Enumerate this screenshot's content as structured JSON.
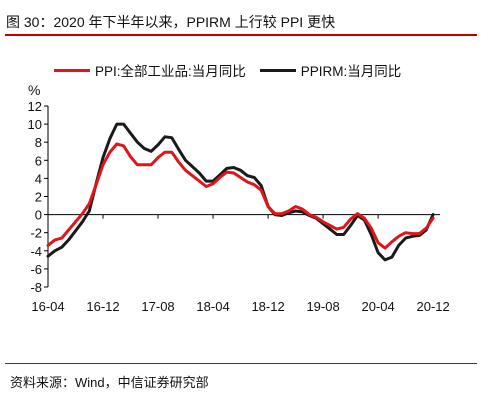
{
  "figure": {
    "title": "图 30：2020 年下半年以来，PPIRM 上行较 PPI 更快",
    "source": "资料来源：Wind，中信证券研究部"
  },
  "colors": {
    "accent_rule": "#c00000"
  },
  "chart_data": {
    "type": "line",
    "ylabel": "%",
    "ylim": [
      -8,
      12
    ],
    "yticks": [
      12,
      10,
      8,
      6,
      4,
      2,
      0,
      -2,
      -4,
      -6,
      -8
    ],
    "xlim": [
      "2016-04",
      "2021-01"
    ],
    "xtick_labels": [
      "16-04",
      "16-12",
      "17-08",
      "18-04",
      "18-12",
      "19-08",
      "20-04",
      "20-12"
    ],
    "xtick_dates": [
      "2016-04",
      "2016-12",
      "2017-08",
      "2018-04",
      "2018-12",
      "2019-08",
      "2020-04",
      "2020-12"
    ],
    "grid": false,
    "legend_position": "top",
    "series": [
      {
        "name": "PPI:全部工业品:当月同比",
        "color": "#e0151c",
        "points": [
          [
            "2016-04",
            -3.4
          ],
          [
            "2016-05",
            -2.8
          ],
          [
            "2016-06",
            -2.6
          ],
          [
            "2016-07",
            -1.7
          ],
          [
            "2016-08",
            -0.8
          ],
          [
            "2016-09",
            0.1
          ],
          [
            "2016-10",
            1.2
          ],
          [
            "2016-11",
            3.3
          ],
          [
            "2016-12",
            5.5
          ],
          [
            "2017-01",
            6.9
          ],
          [
            "2017-02",
            7.8
          ],
          [
            "2017-03",
            7.6
          ],
          [
            "2017-04",
            6.4
          ],
          [
            "2017-05",
            5.5
          ],
          [
            "2017-06",
            5.5
          ],
          [
            "2017-07",
            5.5
          ],
          [
            "2017-08",
            6.3
          ],
          [
            "2017-09",
            6.9
          ],
          [
            "2017-10",
            6.9
          ],
          [
            "2017-11",
            5.8
          ],
          [
            "2017-12",
            4.9
          ],
          [
            "2018-01",
            4.3
          ],
          [
            "2018-02",
            3.7
          ],
          [
            "2018-03",
            3.1
          ],
          [
            "2018-04",
            3.4
          ],
          [
            "2018-05",
            4.1
          ],
          [
            "2018-06",
            4.7
          ],
          [
            "2018-07",
            4.6
          ],
          [
            "2018-08",
            4.1
          ],
          [
            "2018-09",
            3.6
          ],
          [
            "2018-10",
            3.3
          ],
          [
            "2018-11",
            2.7
          ],
          [
            "2018-12",
            0.9
          ],
          [
            "2019-01",
            0.1
          ],
          [
            "2019-02",
            0.1
          ],
          [
            "2019-03",
            0.4
          ],
          [
            "2019-04",
            0.9
          ],
          [
            "2019-05",
            0.6
          ],
          [
            "2019-06",
            0.0
          ],
          [
            "2019-07",
            -0.3
          ],
          [
            "2019-08",
            -0.8
          ],
          [
            "2019-09",
            -1.2
          ],
          [
            "2019-10",
            -1.6
          ],
          [
            "2019-11",
            -1.4
          ],
          [
            "2019-12",
            -0.5
          ],
          [
            "2020-01",
            0.1
          ],
          [
            "2020-02",
            -0.4
          ],
          [
            "2020-03",
            -1.5
          ],
          [
            "2020-04",
            -3.1
          ],
          [
            "2020-05",
            -3.7
          ],
          [
            "2020-06",
            -3.0
          ],
          [
            "2020-07",
            -2.4
          ],
          [
            "2020-08",
            -2.0
          ],
          [
            "2020-09",
            -2.1
          ],
          [
            "2020-10",
            -2.1
          ],
          [
            "2020-11",
            -1.5
          ],
          [
            "2020-12",
            -0.4
          ]
        ]
      },
      {
        "name": "PPIRM:当月同比",
        "color": "#1a1a1a",
        "points": [
          [
            "2016-04",
            -4.6
          ],
          [
            "2016-05",
            -4.0
          ],
          [
            "2016-06",
            -3.6
          ],
          [
            "2016-07",
            -2.8
          ],
          [
            "2016-08",
            -1.8
          ],
          [
            "2016-09",
            -0.8
          ],
          [
            "2016-10",
            0.4
          ],
          [
            "2016-11",
            3.4
          ],
          [
            "2016-12",
            6.3
          ],
          [
            "2017-01",
            8.4
          ],
          [
            "2017-02",
            10.0
          ],
          [
            "2017-03",
            10.0
          ],
          [
            "2017-04",
            9.0
          ],
          [
            "2017-05",
            8.0
          ],
          [
            "2017-06",
            7.3
          ],
          [
            "2017-07",
            7.0
          ],
          [
            "2017-08",
            7.7
          ],
          [
            "2017-09",
            8.6
          ],
          [
            "2017-10",
            8.5
          ],
          [
            "2017-11",
            7.2
          ],
          [
            "2017-12",
            6.0
          ],
          [
            "2018-01",
            5.3
          ],
          [
            "2018-02",
            4.6
          ],
          [
            "2018-03",
            3.7
          ],
          [
            "2018-04",
            3.7
          ],
          [
            "2018-05",
            4.4
          ],
          [
            "2018-06",
            5.1
          ],
          [
            "2018-07",
            5.2
          ],
          [
            "2018-08",
            4.9
          ],
          [
            "2018-09",
            4.3
          ],
          [
            "2018-10",
            4.1
          ],
          [
            "2018-11",
            3.2
          ],
          [
            "2018-12",
            0.9
          ],
          [
            "2019-01",
            0.0
          ],
          [
            "2019-02",
            -0.1
          ],
          [
            "2019-03",
            0.2
          ],
          [
            "2019-04",
            0.4
          ],
          [
            "2019-05",
            0.3
          ],
          [
            "2019-06",
            -0.1
          ],
          [
            "2019-07",
            -0.4
          ],
          [
            "2019-08",
            -1.0
          ],
          [
            "2019-09",
            -1.6
          ],
          [
            "2019-10",
            -2.2
          ],
          [
            "2019-11",
            -2.2
          ],
          [
            "2019-12",
            -1.2
          ],
          [
            "2020-01",
            -0.1
          ],
          [
            "2020-02",
            -0.6
          ],
          [
            "2020-03",
            -2.2
          ],
          [
            "2020-04",
            -4.2
          ],
          [
            "2020-05",
            -5.0
          ],
          [
            "2020-06",
            -4.7
          ],
          [
            "2020-07",
            -3.4
          ],
          [
            "2020-08",
            -2.6
          ],
          [
            "2020-09",
            -2.4
          ],
          [
            "2020-10",
            -2.3
          ],
          [
            "2020-11",
            -1.7
          ],
          [
            "2020-12",
            0.0
          ]
        ]
      }
    ]
  }
}
